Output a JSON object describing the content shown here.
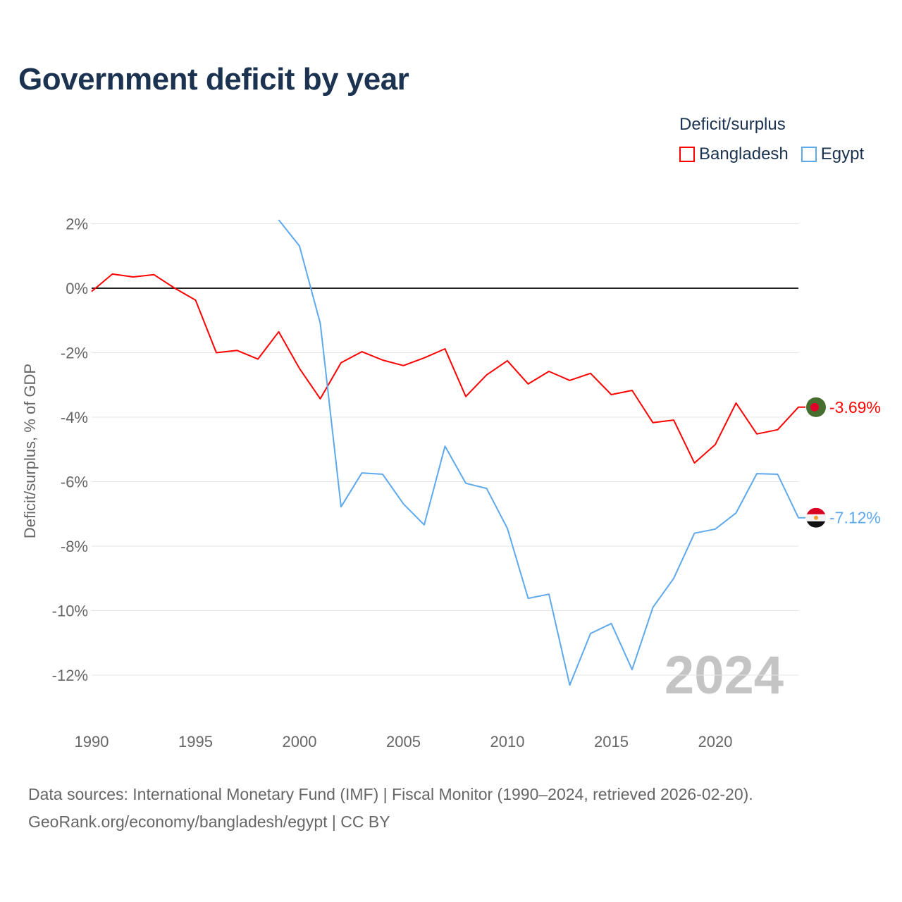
{
  "title": "Government deficit by year",
  "legend": {
    "title": "Deficit/surplus",
    "items": [
      {
        "label": "Bangladesh",
        "color": "#ff0000"
      },
      {
        "label": "Egypt",
        "color": "#5ea8ec"
      }
    ]
  },
  "footer": {
    "line1": "Data sources: International Monetary Fund (IMF) | Fiscal Monitor (1990–2024, retrieved 2026-02-20).",
    "line2": "GeoRank.org/economy/bangladesh/egypt | CC BY"
  },
  "chart_data": {
    "type": "line",
    "title": "Government deficit by year",
    "xlabel": "",
    "ylabel": "Deficit/surplus, % of GDP",
    "xlim": [
      1990,
      2024
    ],
    "ylim": [
      -13.3,
      2.5
    ],
    "grid": true,
    "legend_position": "top-right",
    "xticks": [
      1990,
      1995,
      2000,
      2005,
      2010,
      2015,
      2020
    ],
    "xtick_labels": [
      "1990",
      "1995",
      "2000",
      "2005",
      "2010",
      "2015",
      "2020"
    ],
    "yticks": [
      2,
      0,
      -2,
      -4,
      -6,
      -8,
      -10,
      -12
    ],
    "ytick_labels": [
      "2%",
      "0%",
      "-2%",
      "-4%",
      "-6%",
      "-8%",
      "-10%",
      "-12%"
    ],
    "watermark_year": "2024",
    "series": [
      {
        "name": "Bangladesh",
        "color": "#ff0000",
        "end_label": "-3.69%",
        "x": [
          1990,
          1991,
          1992,
          1993,
          1994,
          1995,
          1996,
          1997,
          1998,
          1999,
          2000,
          2001,
          2002,
          2003,
          2004,
          2005,
          2006,
          2007,
          2008,
          2009,
          2010,
          2011,
          2012,
          2013,
          2014,
          2015,
          2016,
          2017,
          2018,
          2019,
          2020,
          2021,
          2022,
          2023,
          2024
        ],
        "values": [
          -0.1,
          0.44,
          0.35,
          0.42,
          0.0,
          -0.37,
          -2.0,
          -1.93,
          -2.2,
          -1.35,
          -2.49,
          -3.43,
          -2.31,
          -1.97,
          -2.23,
          -2.4,
          -2.16,
          -1.88,
          -3.36,
          -2.69,
          -2.25,
          -2.97,
          -2.58,
          -2.86,
          -2.64,
          -3.3,
          -3.17,
          -4.17,
          -4.09,
          -5.42,
          -4.85,
          -3.56,
          -4.52,
          -4.39,
          -3.69
        ]
      },
      {
        "name": "Egypt",
        "color": "#5ea8ec",
        "end_label": "-7.12%",
        "x": [
          1999,
          2000,
          2001,
          2002,
          2003,
          2004,
          2005,
          2006,
          2007,
          2008,
          2009,
          2010,
          2011,
          2012,
          2013,
          2014,
          2015,
          2016,
          2017,
          2018,
          2019,
          2020,
          2021,
          2022,
          2023,
          2024
        ],
        "values": [
          2.12,
          1.31,
          -1.09,
          -6.78,
          -5.73,
          -5.77,
          -6.69,
          -7.34,
          -4.9,
          -6.05,
          -6.21,
          -7.45,
          -9.62,
          -9.49,
          -12.31,
          -10.71,
          -10.4,
          -11.83,
          -9.9,
          -9.0,
          -7.6,
          -7.47,
          -6.97,
          -5.75,
          -5.77,
          -7.12
        ]
      }
    ]
  }
}
